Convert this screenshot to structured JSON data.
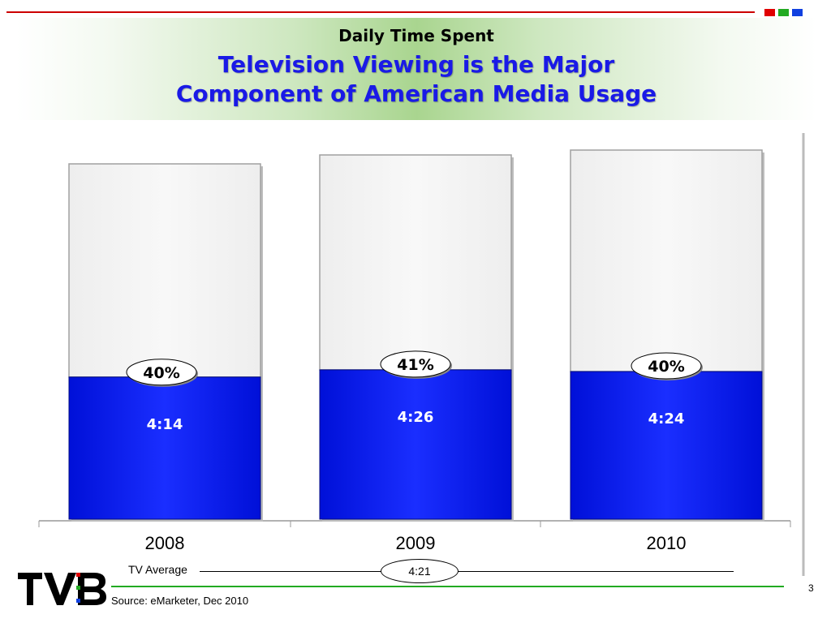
{
  "header": {
    "subtitle": "Daily Time Spent",
    "title_line1": "Television Viewing is the Major",
    "title_line2": "Component of American Media Usage"
  },
  "colors": {
    "accent_blue": "#0a1ef0",
    "rule_red": "#cc0000",
    "rule_green": "#22aa22",
    "title_blue": "#1a1ae6"
  },
  "chart_data": {
    "type": "bar",
    "stacked": true,
    "categories": [
      "2008",
      "2009",
      "2010"
    ],
    "series": [
      {
        "name": "",
        "values": [
          "4:14",
          "4:26",
          "4:24"
        ],
        "share_of_total_pct": [
          40,
          41,
          40
        ],
        "labels": [
          "40%",
          "41%",
          "40%"
        ]
      },
      {
        "name": "",
        "values": [
          null,
          null,
          null
        ]
      }
    ],
    "title": "",
    "xlabel": "",
    "ylabel": "",
    "grid": false,
    "legend": "none"
  },
  "tv_average": {
    "label": "TV Average",
    "value": "4:21"
  },
  "footer": {
    "source": "Source: eMarketer, Dec 2010",
    "page_number": "3",
    "logo_text": "TVB"
  }
}
